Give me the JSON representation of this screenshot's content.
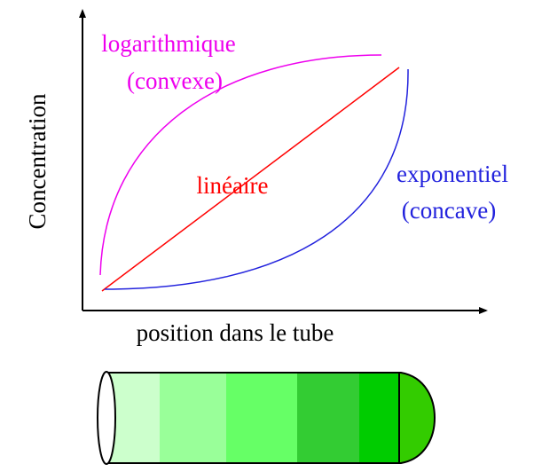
{
  "axes": {
    "y_label": "Concentration",
    "x_label": "position dans le tube"
  },
  "curves": [
    {
      "lines": [
        "logarithmique",
        "(convexe)"
      ]
    },
    {
      "lines": [
        "linéaire"
      ]
    },
    {
      "lines": [
        "exponentiel",
        "(concave)"
      ]
    }
  ]
}
